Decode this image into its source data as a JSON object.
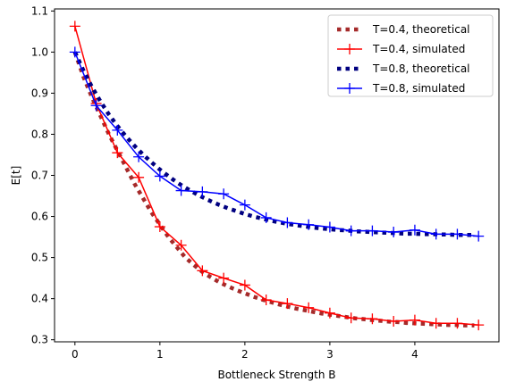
{
  "chart_data": {
    "type": "line",
    "title": "",
    "xlabel": "Bottleneck Strength B",
    "ylabel": "E[t]",
    "xlim": [
      -0.24,
      4.99
    ],
    "ylim": [
      0.295,
      1.105
    ],
    "xticks": [
      0,
      1,
      2,
      3,
      4
    ],
    "yticks": [
      0.3,
      0.4,
      0.5,
      0.6,
      0.7,
      0.8,
      0.9,
      1.0,
      1.1
    ],
    "ytick_labels": [
      "0.3",
      "0.4",
      "0.5",
      "0.6",
      "0.7",
      "0.8",
      "0.9",
      "1.0",
      "1.1"
    ],
    "grid": false,
    "legend_position": "top-right",
    "series": [
      {
        "name": "T=0.4, theoretical",
        "style": "dotted",
        "color": "#a52a2a",
        "x": [
          0,
          0.1,
          0.2,
          0.3,
          0.4,
          0.5,
          0.6,
          0.7,
          0.8,
          0.9,
          1.0,
          1.1,
          1.2,
          1.3,
          1.4,
          1.5,
          1.6,
          1.7,
          1.8,
          1.9,
          2.0,
          2.1,
          2.2,
          2.3,
          2.4,
          2.5,
          2.6,
          2.7,
          2.8,
          2.9,
          3.0,
          3.1,
          3.2,
          3.3,
          3.4,
          3.5,
          3.6,
          3.7,
          3.8,
          3.9,
          4.0,
          4.1,
          4.2,
          4.3,
          4.4,
          4.5,
          4.6,
          4.7
        ],
        "y": [
          1.0,
          0.94,
          0.89,
          0.845,
          0.8,
          0.76,
          0.72,
          0.68,
          0.645,
          0.61,
          0.58,
          0.55,
          0.525,
          0.5,
          0.482,
          0.465,
          0.452,
          0.44,
          0.43,
          0.421,
          0.413,
          0.405,
          0.398,
          0.392,
          0.386,
          0.381,
          0.376,
          0.372,
          0.368,
          0.364,
          0.361,
          0.358,
          0.355,
          0.352,
          0.35,
          0.348,
          0.346,
          0.344,
          0.343,
          0.341,
          0.34,
          0.339,
          0.338,
          0.337,
          0.336,
          0.336,
          0.335,
          0.335
        ]
      },
      {
        "name": "T=0.4, simulated",
        "style": "solid-plus",
        "color": "#ff0000",
        "x": [
          0,
          0.25,
          0.5,
          0.75,
          1.0,
          1.25,
          1.5,
          1.75,
          2.0,
          2.25,
          2.5,
          2.75,
          3.0,
          3.25,
          3.5,
          3.75,
          4.0,
          4.25,
          4.5,
          4.75
        ],
        "y": [
          1.063,
          0.875,
          0.755,
          0.695,
          0.575,
          0.53,
          0.468,
          0.45,
          0.433,
          0.397,
          0.388,
          0.378,
          0.365,
          0.353,
          0.351,
          0.345,
          0.348,
          0.34,
          0.34,
          0.336
        ]
      },
      {
        "name": "T=0.8, theoretical",
        "style": "dotted",
        "color": "#000080",
        "x": [
          0,
          0.1,
          0.2,
          0.3,
          0.4,
          0.5,
          0.6,
          0.7,
          0.8,
          0.9,
          1.0,
          1.1,
          1.2,
          1.3,
          1.4,
          1.5,
          1.6,
          1.7,
          1.8,
          1.9,
          2.0,
          2.1,
          2.2,
          2.3,
          2.4,
          2.5,
          2.6,
          2.7,
          2.8,
          2.9,
          3.0,
          3.1,
          3.2,
          3.3,
          3.4,
          3.5,
          3.6,
          3.7,
          3.8,
          3.9,
          4.0,
          4.1,
          4.2,
          4.3,
          4.4,
          4.5,
          4.6,
          4.7
        ],
        "y": [
          1.0,
          0.955,
          0.915,
          0.88,
          0.848,
          0.82,
          0.795,
          0.772,
          0.751,
          0.732,
          0.714,
          0.698,
          0.683,
          0.67,
          0.658,
          0.647,
          0.637,
          0.628,
          0.62,
          0.613,
          0.606,
          0.6,
          0.595,
          0.59,
          0.586,
          0.582,
          0.579,
          0.576,
          0.573,
          0.571,
          0.569,
          0.567,
          0.566,
          0.564,
          0.563,
          0.562,
          0.561,
          0.56,
          0.559,
          0.558,
          0.558,
          0.557,
          0.557,
          0.556,
          0.556,
          0.555,
          0.555,
          0.555
        ]
      },
      {
        "name": "T=0.8, simulated",
        "style": "solid-plus",
        "color": "#0000ff",
        "x": [
          0,
          0.25,
          0.5,
          0.75,
          1.0,
          1.25,
          1.5,
          1.75,
          2.0,
          2.25,
          2.5,
          2.75,
          3.0,
          3.25,
          3.5,
          3.75,
          4.0,
          4.25,
          4.5,
          4.75
        ],
        "y": [
          1.0,
          0.87,
          0.81,
          0.745,
          0.698,
          0.663,
          0.66,
          0.655,
          0.628,
          0.597,
          0.585,
          0.58,
          0.574,
          0.565,
          0.565,
          0.562,
          0.567,
          0.557,
          0.557,
          0.552
        ]
      }
    ]
  }
}
